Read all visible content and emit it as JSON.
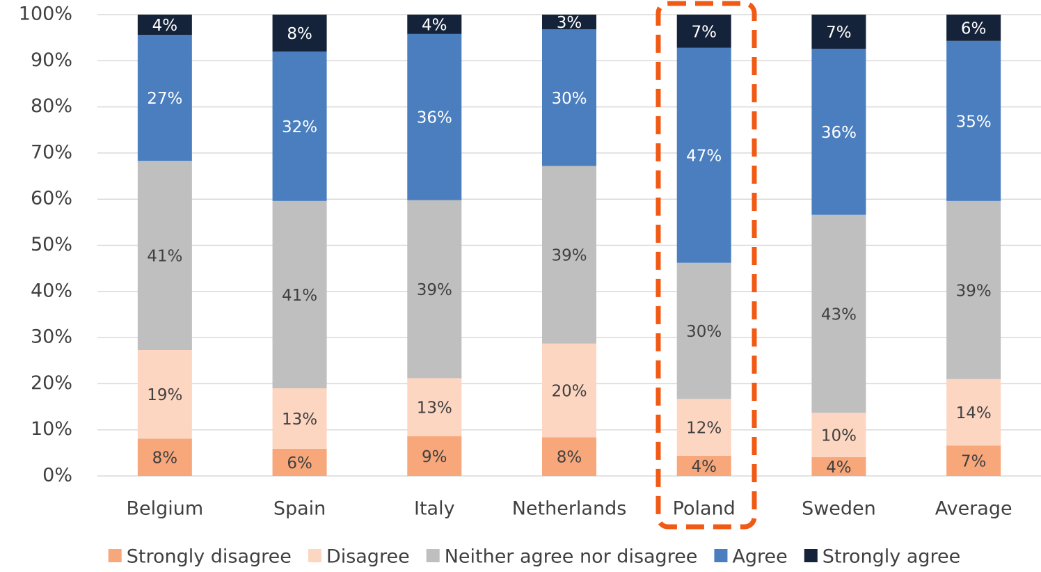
{
  "chart_data": {
    "type": "stacked_bar",
    "categories": [
      "Belgium",
      "Spain",
      "Italy",
      "Netherlands",
      "Poland",
      "Sweden",
      "Average"
    ],
    "series": [
      {
        "name": "Strongly disagree",
        "color": "#f8a77a",
        "values": [
          8.1,
          5.9,
          8.6,
          8.4,
          4.4,
          4.1,
          6.6
        ],
        "value_labels": [
          "8%",
          "6%",
          "9%",
          "8%",
          "4%",
          "4%",
          "7%"
        ]
      },
      {
        "name": "Disagree",
        "color": "#fdd6c1",
        "values": [
          19.2,
          13.1,
          12.6,
          20.3,
          12.3,
          9.6,
          14.4
        ],
        "value_labels": [
          "19%",
          "13%",
          "13%",
          "20%",
          "12%",
          "10%",
          "14%"
        ]
      },
      {
        "name": "Neither agree nor disagree",
        "color": "#bfbfbf",
        "values": [
          41.0,
          40.6,
          38.6,
          38.5,
          29.5,
          42.9,
          38.6
        ],
        "value_labels": [
          "41%",
          "41%",
          "39%",
          "39%",
          "30%",
          "43%",
          "39%"
        ]
      },
      {
        "name": "Agree",
        "color": "#4a7ebf",
        "values": [
          27.3,
          32.4,
          36.0,
          29.6,
          46.6,
          36.0,
          34.7
        ],
        "value_labels": [
          "27%",
          "32%",
          "36%",
          "30%",
          "47%",
          "36%",
          "35%"
        ]
      },
      {
        "name": "Strongly agree",
        "color": "#15233a",
        "values": [
          4.4,
          8.0,
          4.2,
          3.2,
          7.2,
          7.4,
          5.7
        ],
        "value_labels": [
          "4%",
          "8%",
          "4%",
          "3%",
          "7%",
          "7%",
          "6%"
        ]
      }
    ],
    "ylim": [
      0,
      100
    ],
    "yticks": [
      {
        "value": 0,
        "label": "0%"
      },
      {
        "value": 10,
        "label": "10%"
      },
      {
        "value": 20,
        "label": "20%"
      },
      {
        "value": 30,
        "label": "30%"
      },
      {
        "value": 40,
        "label": "40%"
      },
      {
        "value": 50,
        "label": "50%"
      },
      {
        "value": 60,
        "label": "60%"
      },
      {
        "value": 70,
        "label": "70%"
      },
      {
        "value": 80,
        "label": "80%"
      },
      {
        "value": 90,
        "label": "90%"
      },
      {
        "value": 100,
        "label": "100%"
      }
    ],
    "grid": true,
    "legend": "bottom"
  }
}
